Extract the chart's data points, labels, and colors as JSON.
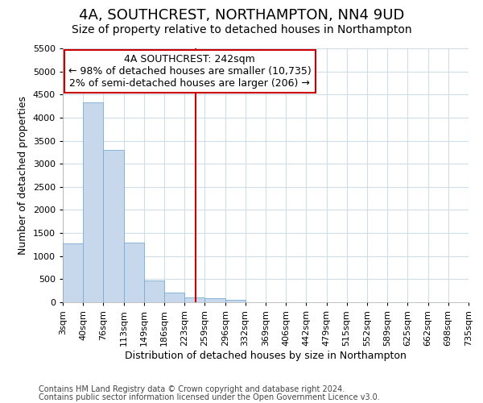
{
  "title": "4A, SOUTHCREST, NORTHAMPTON, NN4 9UD",
  "subtitle": "Size of property relative to detached houses in Northampton",
  "xlabel": "Distribution of detached houses by size in Northampton",
  "ylabel": "Number of detached properties",
  "footnote1": "Contains HM Land Registry data © Crown copyright and database right 2024.",
  "footnote2": "Contains public sector information licensed under the Open Government Licence v3.0.",
  "annotation_title": "4A SOUTHCREST: 242sqm",
  "annotation_line1": "← 98% of detached houses are smaller (10,735)",
  "annotation_line2": "2% of semi-detached houses are larger (206) →",
  "bar_color": "#c8d8ec",
  "bar_edge_color": "#7aacd0",
  "vline_x": 242,
  "vline_color": "#cc0000",
  "bin_edges": [
    3,
    40,
    76,
    113,
    149,
    186,
    223,
    259,
    296,
    332,
    369,
    406,
    442,
    479,
    515,
    552,
    589,
    625,
    662,
    698,
    735
  ],
  "bin_labels": [
    "3sqm",
    "40sqm",
    "76sqm",
    "113sqm",
    "149sqm",
    "186sqm",
    "223sqm",
    "259sqm",
    "296sqm",
    "332sqm",
    "369sqm",
    "406sqm",
    "442sqm",
    "479sqm",
    "515sqm",
    "552sqm",
    "589sqm",
    "625sqm",
    "662sqm",
    "698sqm",
    "735sqm"
  ],
  "bar_heights": [
    1270,
    4330,
    3300,
    1285,
    480,
    215,
    100,
    80,
    55,
    0,
    0,
    0,
    0,
    0,
    0,
    0,
    0,
    0,
    0,
    0
  ],
  "ylim": [
    0,
    5500
  ],
  "xlim": [
    3,
    735
  ],
  "background_color": "#ffffff",
  "plot_bg_color": "#ffffff",
  "grid_color": "#d0dce8",
  "annotation_box_color": "#ffffff",
  "annotation_box_edge": "#cc0000",
  "title_fontsize": 13,
  "subtitle_fontsize": 10,
  "axis_label_fontsize": 9,
  "tick_fontsize": 8,
  "annotation_fontsize": 9,
  "footnote_fontsize": 7
}
